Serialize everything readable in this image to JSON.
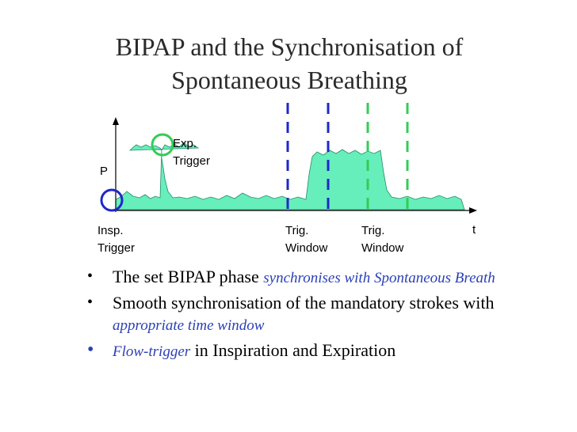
{
  "title": {
    "line1": "BIPAP and the Synchronisation of",
    "line2": "Spontaneous Breathing"
  },
  "diagram": {
    "y_axis_label": "P",
    "x_axis_label": "t",
    "exp_trigger_line1": "Exp.",
    "exp_trigger_line2": "Trigger",
    "insp_trigger_line1": "Insp.",
    "insp_trigger_line2": "Trigger",
    "trig_window1_line1": "Trig.",
    "trig_window1_line2": "Window",
    "trig_window2_line1": "Trig.",
    "trig_window2_line2": "Window",
    "colors": {
      "fill": "#66eebb",
      "circle": "#1f28c8",
      "circle_exp": "#33cc55",
      "window1_lines": "#1f28c8",
      "window2_lines": "#33cc55"
    }
  },
  "bullets": [
    {
      "text": "The set BIPAP phase ",
      "emph": "synchronises with Spontaneous Breath"
    },
    {
      "text": "Smooth synchronisation of the mandatory strokes with ",
      "emph": "appropriate time window"
    },
    {
      "emph": "Flow-trigger",
      "text": " in Inspiration and Expiration"
    }
  ]
}
